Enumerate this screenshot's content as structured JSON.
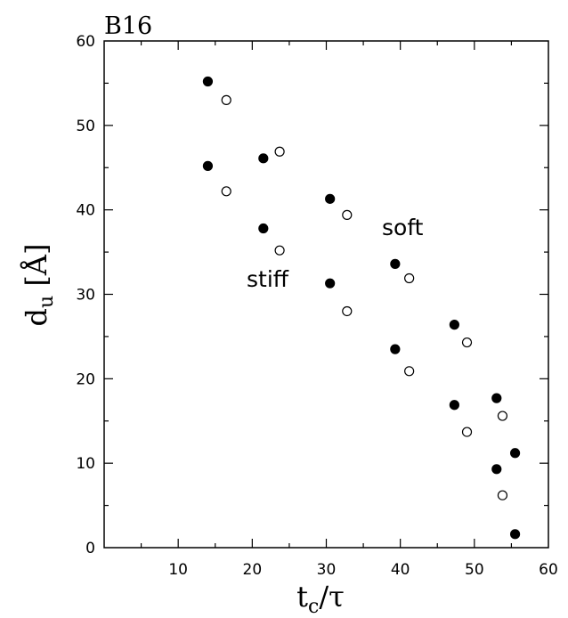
{
  "chart_data": {
    "type": "scatter",
    "panel_label": "B16",
    "xlabel": "t_c/τ",
    "ylabel": "d_u [Å]",
    "xlim": [
      0,
      60
    ],
    "ylim": [
      0,
      60
    ],
    "xticks": [
      10,
      20,
      30,
      40,
      50,
      60
    ],
    "yticks": [
      0,
      10,
      20,
      30,
      40,
      50,
      60
    ],
    "grid": false,
    "annotations": [
      {
        "text": "soft",
        "x": 43.5,
        "y": 37.5
      },
      {
        "text": "stiff",
        "x": 26.0,
        "y": 29.2
      }
    ],
    "series": [
      {
        "marker": "filled-circle",
        "color": "#000000",
        "x": [
          14,
          14,
          21.5,
          21.5,
          30.5,
          30.5,
          39.3,
          39.3,
          47.3,
          47.3,
          53,
          53,
          55.5,
          55.5
        ],
        "y": [
          55.2,
          45.2,
          46.1,
          37.8,
          41.3,
          31.3,
          33.6,
          23.5,
          26.4,
          16.9,
          17.7,
          9.3,
          11.2,
          1.6
        ]
      },
      {
        "marker": "open-circle",
        "color": "#000000",
        "x": [
          16.5,
          16.5,
          23.7,
          23.7,
          32.8,
          32.8,
          41.2,
          41.2,
          49,
          49,
          53.8,
          53.8
        ],
        "y": [
          53,
          42.2,
          46.9,
          35.2,
          39.4,
          28,
          31.9,
          20.9,
          24.3,
          13.7,
          15.6,
          6.2
        ]
      }
    ]
  }
}
